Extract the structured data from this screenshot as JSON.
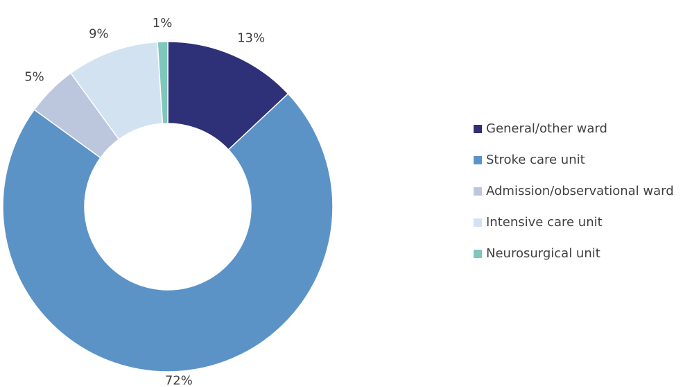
{
  "chart_data": {
    "type": "donut",
    "categories": [
      "General/other ward",
      "Stroke care unit",
      "Admission/observational ward",
      "Intensive care unit",
      "Neurosurgical unit"
    ],
    "values": [
      13,
      72,
      5,
      9,
      1
    ],
    "value_labels": [
      "13%",
      "72%",
      "5%",
      "9%",
      "1%"
    ],
    "colors": [
      "#2e3078",
      "#5b93c7",
      "#bcc6dc",
      "#d2e2f0",
      "#7fc6bd"
    ],
    "legend": "right"
  }
}
